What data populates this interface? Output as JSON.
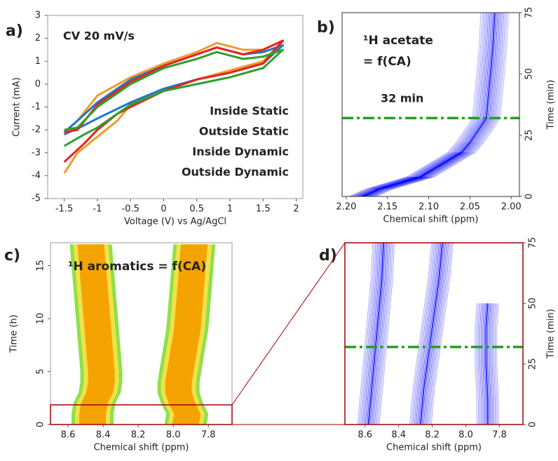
{
  "chart_data": [
    {
      "type": "line",
      "panel_label": "a)",
      "title": "CV 20 mV/s",
      "x_label": "Voltage (V) vs Ag/AgCl",
      "y_label": "Current (mA)",
      "xlim": [
        -1.75,
        2.1
      ],
      "ylim": [
        -5,
        3
      ],
      "xticks": [
        -1.5,
        -1,
        -0.5,
        0,
        0.5,
        1,
        1.5,
        2
      ],
      "yticks": [
        -5,
        -4,
        -3,
        -2,
        -1,
        0,
        1,
        2,
        3
      ],
      "series": [
        {
          "name": "Inside Static",
          "color": "#f39a2b",
          "x": [
            -1.5,
            -1.3,
            -1,
            -0.7,
            -0.5,
            0,
            0.5,
            1,
            1.5,
            1.8,
            1.5,
            1.2,
            0.8,
            0.5,
            0,
            -0.5,
            -1,
            -1.3,
            -1.5
          ],
          "values": [
            -3.9,
            -3.0,
            -2.3,
            -1.6,
            -0.9,
            -0.3,
            0.2,
            0.6,
            1.0,
            1.9,
            1.5,
            1.5,
            1.8,
            1.4,
            0.9,
            0.3,
            -0.5,
            -1.6,
            -2.1
          ]
        },
        {
          "name": "Outside Static",
          "color": "#1f77c8",
          "x": [
            -1.5,
            -1.2,
            -1,
            -0.5,
            0,
            0.5,
            1,
            1.5,
            1.8,
            1.5,
            1.2,
            0.8,
            0.5,
            0,
            -0.5,
            -1,
            -1.3,
            -1.5
          ],
          "values": [
            -2.2,
            -1.8,
            -1.5,
            -0.8,
            -0.2,
            0.2,
            0.5,
            0.9,
            1.7,
            1.4,
            1.3,
            1.6,
            1.3,
            0.8,
            0.2,
            -0.8,
            -1.6,
            -2.1
          ]
        },
        {
          "name": "Inside Dynamic",
          "color": "#e8231f",
          "x": [
            -1.5,
            -1.2,
            -1,
            -0.7,
            -0.5,
            0,
            0.5,
            1,
            1.5,
            1.8,
            1.5,
            1.2,
            0.8,
            0.5,
            0,
            -0.5,
            -1,
            -1.3,
            -1.5
          ],
          "values": [
            -3.4,
            -2.6,
            -2.0,
            -1.3,
            -1.0,
            -0.3,
            0.2,
            0.5,
            0.9,
            1.9,
            1.5,
            1.3,
            1.6,
            1.3,
            0.8,
            0.1,
            -0.9,
            -2.0,
            -2.1
          ]
        },
        {
          "name": "Outside Dynamic",
          "color": "#2ca02c",
          "x": [
            -1.5,
            -1.2,
            -1,
            -0.5,
            0,
            0.5,
            1,
            1.5,
            1.8,
            1.5,
            1.2,
            0.8,
            0.5,
            0,
            -0.5,
            -1,
            -1.3,
            -1.5
          ],
          "values": [
            -2.7,
            -2.2,
            -1.9,
            -0.9,
            -0.3,
            0.0,
            0.3,
            0.7,
            1.5,
            1.2,
            1.1,
            1.4,
            1.1,
            0.7,
            0.0,
            -1.0,
            -1.9,
            -2.0
          ]
        }
      ]
    },
    {
      "type": "contour",
      "panel_label": "b)",
      "title_lines": [
        "¹H acetate",
        "= f(CA)"
      ],
      "x_label": "Chemical shift (ppm)",
      "y_label": "Time (min)",
      "xlim": [
        2.205,
        1.99
      ],
      "ylim": [
        0,
        75
      ],
      "xticks": [
        {
          "value": 2.2,
          "label": "2.20"
        },
        2.15,
        {
          "value": 2.1,
          "label": "2.10"
        },
        2.05,
        {
          "value": 2.0,
          "label": "2.00"
        }
      ],
      "yticks": [
        0,
        25,
        50,
        75
      ],
      "marker_line": 32,
      "marker_label": "32 min",
      "marker_color": "#22a022",
      "series": [
        {
          "color": "#0000ff",
          "x": [
            2.18,
            2.16,
            2.13,
            2.11,
            2.1,
            2.09,
            2.075,
            2.06,
            2.05,
            2.04,
            2.03,
            2.028,
            2.025,
            2.022,
            2.02
          ],
          "values": [
            0,
            3,
            6,
            8,
            10,
            12,
            15,
            18,
            22,
            27,
            32,
            40,
            50,
            62,
            75
          ]
        }
      ]
    },
    {
      "type": "heatmap",
      "panel_label": "c)",
      "title": "¹H aromatics = f(CA)",
      "x_label": "Chemical shift (ppm)",
      "y_label": "Time (h)",
      "xlim": [
        8.7,
        7.665
      ],
      "ylim": [
        0,
        17.15
      ],
      "xticks": [
        8.6,
        8.4,
        8.2,
        {
          "value": 8,
          "label": "8.0"
        },
        7.8
      ],
      "yticks": [
        0,
        5,
        10,
        15
      ],
      "series": [
        {
          "color": "#f5a300",
          "x": [
            8.46,
            8.46,
            8.45,
            8.42,
            8.41,
            8.41,
            8.42,
            8.43,
            8.44,
            8.45,
            8.46,
            8.47
          ],
          "values": [
            0,
            1,
            2,
            3,
            4,
            5,
            7,
            9,
            11,
            13,
            15,
            17
          ]
        },
        {
          "color": "#f5a300",
          "x": [
            7.93,
            7.92,
            7.95,
            7.97,
            7.97,
            7.96,
            7.94,
            7.92,
            7.91,
            7.9,
            7.89,
            7.88
          ],
          "values": [
            0,
            1,
            2,
            3,
            4,
            5,
            7,
            9,
            11,
            13,
            15,
            17
          ]
        }
      ]
    },
    {
      "type": "contour",
      "panel_label": "d)",
      "x_label": "Chemical shift (ppm)",
      "y_label": "Time (min)",
      "xlim": [
        8.72,
        7.66
      ],
      "ylim": [
        0,
        75
      ],
      "xticks": [
        8.6,
        8.4,
        8.2,
        {
          "value": 8,
          "label": "8.0"
        },
        7.8
      ],
      "yticks": [
        0,
        25,
        50,
        75
      ],
      "marker_line": 32,
      "marker_color": "#22a022",
      "series": [
        {
          "color": "#0000ff",
          "x": [
            8.58,
            8.56,
            8.54,
            8.52,
            8.5,
            8.49
          ],
          "values": [
            0,
            15,
            30,
            45,
            60,
            75
          ]
        },
        {
          "color": "#0000ff",
          "x": [
            8.27,
            8.25,
            8.22,
            8.19,
            8.16,
            8.14
          ],
          "values": [
            0,
            15,
            30,
            45,
            60,
            75
          ]
        },
        {
          "color": "#0000ff",
          "x": [
            7.87,
            7.87,
            7.88,
            7.88,
            7.87
          ],
          "values": [
            0,
            10,
            25,
            40,
            50
          ]
        }
      ]
    }
  ]
}
